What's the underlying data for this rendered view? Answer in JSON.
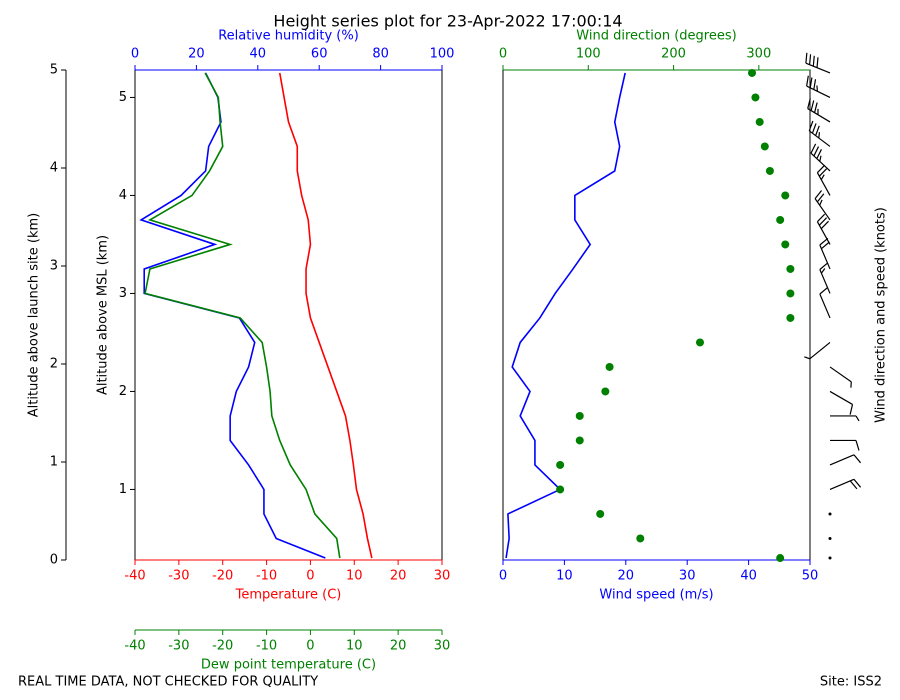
{
  "title": "Height series plot for 23-Apr-2022 17:00:14",
  "notes": [
    "REAL TIME DATA, NOT CHECKED FOR QUALITY",
    "Site: ISS2"
  ],
  "chart_data": [
    {
      "type": "line",
      "y": [
        0.3,
        0.5,
        0.75,
        1.0,
        1.25,
        1.5,
        1.75,
        2.0,
        2.25,
        2.5,
        2.75,
        3.0,
        3.25,
        3.5,
        3.75,
        4.0,
        4.25,
        4.5,
        4.75,
        5.0,
        5.25
      ],
      "ylabel": "Altitude above MSL (km)",
      "ylim": [
        0.28,
        5.28
      ],
      "yticks": [
        1,
        2,
        3,
        4,
        5
      ],
      "y2label": "Altitude above launch site (km)",
      "y2lim": [
        0,
        5
      ],
      "y2ticks": [
        0,
        1,
        2,
        3,
        4,
        5
      ],
      "xlabel": "Temperature (C)",
      "xlim": [
        -40,
        30
      ],
      "xticks": [
        -40,
        -30,
        -20,
        -10,
        0,
        10,
        20,
        30
      ],
      "x2label": "Relative humidity (%)",
      "x2lim": [
        0,
        100
      ],
      "x2ticks": [
        0,
        20,
        40,
        60,
        80,
        100
      ],
      "x3label": "Dew point temperature (C)",
      "x3lim": [
        -40,
        30
      ],
      "x3ticks": [
        -40,
        -30,
        -20,
        -10,
        0,
        10,
        20,
        30
      ],
      "series": [
        {
          "name": "Temperature",
          "color": "#ff0000",
          "axis": "x",
          "values": [
            14,
            13,
            12,
            10.5,
            9.8,
            9,
            8,
            6,
            4,
            2,
            0,
            -1,
            -1,
            0,
            -0.5,
            -2,
            -3,
            -3,
            -5,
            -6,
            -7
          ]
        },
        {
          "name": "Relative humidity",
          "color": "#0000ff",
          "axis": "x2",
          "values": [
            62,
            46,
            42,
            42,
            37,
            31,
            31,
            33,
            37,
            39,
            34,
            3,
            3,
            26,
            2,
            15,
            23,
            24,
            28,
            27,
            23
          ]
        },
        {
          "name": "Dew point temperature",
          "color": "#008000",
          "axis": "x3",
          "values": [
            6.7,
            6,
            1,
            -1,
            -4.6,
            -7,
            -8.8,
            -9.2,
            -10,
            -11,
            -16,
            -37.7,
            -36.6,
            -18.3,
            -36.6,
            -27,
            -23,
            -20,
            -20.6,
            -21,
            -24
          ]
        }
      ]
    },
    {
      "type": "line",
      "y": [
        0.3,
        0.5,
        0.75,
        1.0,
        1.25,
        1.5,
        1.75,
        2.0,
        2.25,
        2.5,
        2.75,
        3.0,
        3.25,
        3.5,
        3.75,
        4.0,
        4.25,
        4.5,
        4.75,
        5.0,
        5.25
      ],
      "ylim": [
        0.28,
        5.28
      ],
      "xlabel": "Wind speed (m/s)",
      "xlim": [
        0,
        50
      ],
      "xticks": [
        0,
        10,
        20,
        30,
        40,
        50
      ],
      "x2label": "Wind direction (degrees)",
      "x2lim": [
        0,
        360
      ],
      "x2ticks": [
        0,
        100,
        200,
        300
      ],
      "y2label": "Wind direction and speed (knots)",
      "series": [
        {
          "name": "Wind speed",
          "color": "#0000ff",
          "axis": "x",
          "values": [
            0.5,
            1,
            0.8,
            9.3,
            5.2,
            5.2,
            2.8,
            4.4,
            1.5,
            2.8,
            6,
            8.5,
            11.4,
            14.2,
            11.7,
            11.7,
            18.2,
            19,
            18.2,
            19,
            19.9
          ]
        },
        {
          "name": "Wind direction",
          "color": "#008000",
          "axis": "x2",
          "marker": "dot",
          "values": [
            325,
            161,
            114,
            67,
            67,
            90,
            90,
            120,
            125,
            231,
            337,
            337,
            337,
            331,
            325,
            331,
            313,
            307,
            301,
            296,
            292
          ]
        }
      ]
    }
  ]
}
